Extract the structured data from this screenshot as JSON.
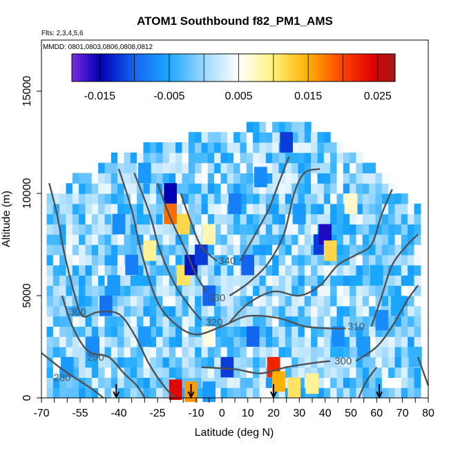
{
  "chart_data": {
    "type": "heatmap",
    "title": "ATOM1 Southbound f82_PM1_AMS",
    "subtitle_flights": "Flts: 2,3,4,5,6",
    "subtitle_dates": "MMDD: 0801,0803,0806,0808,0812",
    "xlabel": "Latitude (deg N)",
    "ylabel": "Altitude (m)",
    "xlim": [
      -70,
      80
    ],
    "ylim": [
      0,
      17500
    ],
    "x_ticks": [
      -70,
      -55,
      -40,
      -25,
      -10,
      0,
      10,
      20,
      30,
      40,
      50,
      60,
      70,
      80
    ],
    "x_tick_labels": [
      "-70",
      "-55",
      "-40",
      "-25",
      "-10",
      "0",
      "10",
      "20",
      "30",
      "40",
      "50",
      "60",
      "70",
      "80"
    ],
    "x_minor_ticks": [
      -65,
      -60,
      -50,
      -45,
      -35,
      -30,
      -20,
      -15,
      -5,
      5,
      15,
      25,
      35,
      45,
      55,
      65,
      75
    ],
    "y_ticks": [
      0,
      5000,
      10000,
      15000
    ],
    "y_tick_labels": [
      "0",
      "5000",
      "10000",
      "15000"
    ],
    "colorbar": {
      "range": [
        -0.019,
        0.0275
      ],
      "tick_values": [
        -0.015,
        -0.005,
        0.005,
        0.015,
        0.025
      ],
      "tick_labels": [
        "-0.015",
        "-0.005",
        "0.005",
        "0.015",
        "0.025"
      ],
      "boundaries": [
        -0.015,
        -0.01,
        -0.005,
        0.0,
        0.005,
        0.01,
        0.015,
        0.02,
        0.025
      ],
      "stops": [
        {
          "v": -0.019,
          "color": "#7b2be0"
        },
        {
          "v": -0.015,
          "color": "#0000b4"
        },
        {
          "v": -0.01,
          "color": "#1464f0"
        },
        {
          "v": -0.005,
          "color": "#1aa8ff"
        },
        {
          "v": 0.0,
          "color": "#9cd8ff"
        },
        {
          "v": 0.005,
          "color": "#ffffff"
        },
        {
          "v": 0.01,
          "color": "#fff07a"
        },
        {
          "v": 0.015,
          "color": "#ffb000"
        },
        {
          "v": 0.02,
          "color": "#ff4000"
        },
        {
          "v": 0.0245,
          "color": "#dd0000"
        },
        {
          "v": 0.0275,
          "color": "#9e1a1a"
        }
      ]
    },
    "field_extent": [
      {
        "lat": -68,
        "alt": 9500
      },
      {
        "lat": -62,
        "alt": 10200
      },
      {
        "lat": -55,
        "alt": 10800
      },
      {
        "lat": -48,
        "alt": 11000
      },
      {
        "lat": -42,
        "alt": 11500
      },
      {
        "lat": -30,
        "alt": 12000
      },
      {
        "lat": -20,
        "alt": 12300
      },
      {
        "lat": -10,
        "alt": 12600
      },
      {
        "lat": 0,
        "alt": 12800
      },
      {
        "lat": 10,
        "alt": 13000
      },
      {
        "lat": 20,
        "alt": 13200
      },
      {
        "lat": 25,
        "alt": 13500
      },
      {
        "lat": 32,
        "alt": 13200
      },
      {
        "lat": 40,
        "alt": 12600
      },
      {
        "lat": 50,
        "alt": 11800
      },
      {
        "lat": 60,
        "alt": 11000
      },
      {
        "lat": 68,
        "alt": 10000
      },
      {
        "lat": 76,
        "alt": 9000
      }
    ],
    "cells": [
      {
        "lat": -45,
        "alt": 4500,
        "v": -0.009
      },
      {
        "lat": -42,
        "alt": 5500,
        "v": -0.006
      },
      {
        "lat": -40,
        "alt": 8500,
        "v": -0.007
      },
      {
        "lat": -35,
        "alt": 6500,
        "v": -0.008
      },
      {
        "lat": -30,
        "alt": 3000,
        "v": -0.006
      },
      {
        "lat": -20,
        "alt": 10000,
        "v": -0.015
      },
      {
        "lat": -20,
        "alt": 9000,
        "v": 0.018
      },
      {
        "lat": -15,
        "alt": 8500,
        "v": 0.012
      },
      {
        "lat": -15,
        "alt": 6000,
        "v": 0.011
      },
      {
        "lat": -12,
        "alt": 6500,
        "v": -0.014
      },
      {
        "lat": -8,
        "alt": 7000,
        "v": -0.012
      },
      {
        "lat": -5,
        "alt": 8000,
        "v": 0.008
      },
      {
        "lat": -5,
        "alt": 5000,
        "v": -0.01
      },
      {
        "lat": -18,
        "alt": 400,
        "v": 0.024
      },
      {
        "lat": -12,
        "alt": 300,
        "v": 0.016
      },
      {
        "lat": -5,
        "alt": 300,
        "v": -0.006
      },
      {
        "lat": 2,
        "alt": 1500,
        "v": -0.012
      },
      {
        "lat": 12,
        "alt": 3000,
        "v": -0.01
      },
      {
        "lat": 10,
        "alt": 6500,
        "v": -0.01
      },
      {
        "lat": 20,
        "alt": 1500,
        "v": 0.022
      },
      {
        "lat": 22,
        "alt": 800,
        "v": 0.015
      },
      {
        "lat": 28,
        "alt": 500,
        "v": 0.011
      },
      {
        "lat": 35,
        "alt": 700,
        "v": 0.009
      },
      {
        "lat": 38,
        "alt": 7500,
        "v": -0.012
      },
      {
        "lat": 40,
        "alt": 8000,
        "v": -0.016
      },
      {
        "lat": 42,
        "alt": 7200,
        "v": 0.012
      },
      {
        "lat": 45,
        "alt": 3000,
        "v": -0.007
      },
      {
        "lat": 55,
        "alt": 2500,
        "v": -0.006
      },
      {
        "lat": 60,
        "alt": 6000,
        "v": -0.005
      },
      {
        "lat": 62,
        "alt": 3800,
        "v": -0.007
      },
      {
        "lat": 68,
        "alt": 4500,
        "v": -0.005
      },
      {
        "lat": 75,
        "alt": 2000,
        "v": -0.004
      },
      {
        "lat": 25,
        "alt": 12500,
        "v": -0.012
      },
      {
        "lat": -30,
        "alt": 11000,
        "v": -0.006
      },
      {
        "lat": 30,
        "alt": 9000,
        "v": -0.006
      },
      {
        "lat": -5,
        "alt": 3000,
        "v": 0.006
      },
      {
        "lat": -50,
        "alt": 2500,
        "v": -0.007
      },
      {
        "lat": -60,
        "alt": 1500,
        "v": -0.006
      },
      {
        "lat": 50,
        "alt": 9500,
        "v": 0.007
      },
      {
        "lat": -28,
        "alt": 7200,
        "v": 0.009
      },
      {
        "lat": 5,
        "alt": 9500,
        "v": -0.008
      },
      {
        "lat": 15,
        "alt": 10800,
        "v": -0.007
      }
    ],
    "contours": [
      {
        "label": "280",
        "label_at": {
          "lat": -62,
          "alt": 1000
        },
        "points": [
          {
            "lat": -70,
            "alt": 2200
          },
          {
            "lat": -63,
            "alt": 1500
          },
          {
            "lat": -56,
            "alt": 900
          },
          {
            "lat": -50,
            "alt": 400
          },
          {
            "lat": -46,
            "alt": 0
          }
        ]
      },
      {
        "label": "290",
        "label_at": {
          "lat": -49,
          "alt": 2000
        },
        "points": [
          {
            "lat": -62,
            "alt": 5000
          },
          {
            "lat": -58,
            "alt": 3500
          },
          {
            "lat": -52,
            "alt": 2300
          },
          {
            "lat": -44,
            "alt": 2000
          },
          {
            "lat": -38,
            "alt": 1200
          },
          {
            "lat": -33,
            "alt": 600
          },
          {
            "lat": -30,
            "alt": 0
          }
        ]
      },
      {
        "label": "300",
        "label_at": {
          "lat": -56,
          "alt": 4200
        },
        "points": [
          {
            "lat": -67,
            "alt": 10500
          },
          {
            "lat": -64,
            "alt": 9000
          },
          {
            "lat": -61,
            "alt": 7000
          },
          {
            "lat": -57,
            "alt": 5000
          },
          {
            "lat": -54,
            "alt": 4000
          },
          {
            "lat": -48,
            "alt": 4200
          },
          {
            "lat": -40,
            "alt": 4100
          },
          {
            "lat": -34,
            "alt": 3100
          },
          {
            "lat": -28,
            "alt": 1600
          },
          {
            "lat": -22,
            "alt": 500
          },
          {
            "lat": -18,
            "alt": 0
          }
        ]
      },
      {
        "label": "310",
        "label_at": {
          "lat": 52,
          "alt": 3500
        },
        "points": [
          {
            "lat": -40,
            "alt": 11200
          },
          {
            "lat": -35,
            "alt": 9200
          },
          {
            "lat": -31,
            "alt": 7000
          },
          {
            "lat": -25,
            "alt": 4700
          },
          {
            "lat": -18,
            "alt": 3600
          },
          {
            "lat": -10,
            "alt": 3100
          },
          {
            "lat": 0,
            "alt": 3500
          },
          {
            "lat": 10,
            "alt": 4000
          },
          {
            "lat": 22,
            "alt": 3900
          },
          {
            "lat": 32,
            "alt": 3500
          },
          {
            "lat": 42,
            "alt": 3400
          },
          {
            "lat": 48,
            "alt": 3400
          }
        ]
      },
      {
        "label": "",
        "label_at": null,
        "points": [
          {
            "lat": 58,
            "alt": 3500
          },
          {
            "lat": 62,
            "alt": 5000
          },
          {
            "lat": 66,
            "alt": 6500
          },
          {
            "lat": 72,
            "alt": 7500
          },
          {
            "lat": 76,
            "alt": 8000
          }
        ]
      },
      {
        "label": "300",
        "label_at": {
          "lat": 47,
          "alt": 1800
        },
        "points": [
          {
            "lat": -8,
            "alt": 1500
          },
          {
            "lat": 5,
            "alt": 1400
          },
          {
            "lat": 15,
            "alt": 1200
          },
          {
            "lat": 25,
            "alt": 1500
          },
          {
            "lat": 35,
            "alt": 1700
          },
          {
            "lat": 42,
            "alt": 1800
          }
        ]
      },
      {
        "label": "",
        "label_at": null,
        "points": [
          {
            "lat": 52,
            "alt": 1800
          },
          {
            "lat": 60,
            "alt": 2500
          },
          {
            "lat": 66,
            "alt": 3500
          },
          {
            "lat": 72,
            "alt": 4800
          },
          {
            "lat": 76,
            "alt": 5500
          }
        ]
      },
      {
        "label": "320",
        "label_at": {
          "lat": -3,
          "alt": 3700
        },
        "points": [
          {
            "lat": -34,
            "alt": 11000
          },
          {
            "lat": -28,
            "alt": 9000
          },
          {
            "lat": -24,
            "alt": 7200
          },
          {
            "lat": -18,
            "alt": 5500
          },
          {
            "lat": -12,
            "alt": 4400
          },
          {
            "lat": -8,
            "alt": 3800
          }
        ]
      },
      {
        "label": "",
        "label_at": null,
        "points": [
          {
            "lat": 3,
            "alt": 3700
          },
          {
            "lat": 10,
            "alt": 4600
          },
          {
            "lat": 20,
            "alt": 5200
          },
          {
            "lat": 30,
            "alt": 5000
          },
          {
            "lat": 38,
            "alt": 5500
          },
          {
            "lat": 45,
            "alt": 6500
          },
          {
            "lat": 52,
            "alt": 7000
          },
          {
            "lat": 58,
            "alt": 7500
          },
          {
            "lat": 62,
            "alt": 9000
          },
          {
            "lat": 66,
            "alt": 10200
          }
        ]
      },
      {
        "label": "330",
        "label_at": {
          "lat": -2,
          "alt": 4900
        },
        "points": [
          {
            "lat": -25,
            "alt": 10500
          },
          {
            "lat": -20,
            "alt": 8800
          },
          {
            "lat": -14,
            "alt": 7200
          },
          {
            "lat": -10,
            "alt": 6000
          },
          {
            "lat": -6,
            "alt": 5200
          }
        ]
      },
      {
        "label": "",
        "label_at": null,
        "points": [
          {
            "lat": 3,
            "alt": 5000
          },
          {
            "lat": 10,
            "alt": 5600
          },
          {
            "lat": 18,
            "alt": 6600
          },
          {
            "lat": 24,
            "alt": 8000
          },
          {
            "lat": 28,
            "alt": 10000
          },
          {
            "lat": 32,
            "alt": 11000
          },
          {
            "lat": 38,
            "alt": 11200
          }
        ]
      },
      {
        "label": "340",
        "label_at": {
          "lat": 2,
          "alt": 6700
        },
        "points": [
          {
            "lat": -16,
            "alt": 10000
          },
          {
            "lat": -12,
            "alt": 8600
          },
          {
            "lat": -8,
            "alt": 7400
          },
          {
            "lat": -2,
            "alt": 6700
          }
        ]
      },
      {
        "label": "",
        "label_at": null,
        "points": [
          {
            "lat": 7,
            "alt": 6700
          },
          {
            "lat": 12,
            "alt": 7800
          },
          {
            "lat": 18,
            "alt": 9200
          },
          {
            "lat": 22,
            "alt": 10500
          },
          {
            "lat": 26,
            "alt": 11800
          }
        ]
      },
      {
        "label": "",
        "label_at": null,
        "points": [
          {
            "lat": 53,
            "alt": 0
          },
          {
            "lat": 56,
            "alt": 800
          },
          {
            "lat": 60,
            "alt": 1500
          }
        ]
      },
      {
        "label": "",
        "label_at": null,
        "points": [
          {
            "lat": 76,
            "alt": 2000
          },
          {
            "lat": 78,
            "alt": 1300
          },
          {
            "lat": 80,
            "alt": 600
          }
        ]
      }
    ],
    "arrows_lat": [
      -41,
      -12,
      20,
      61
    ],
    "grid": false,
    "legend": "none"
  }
}
